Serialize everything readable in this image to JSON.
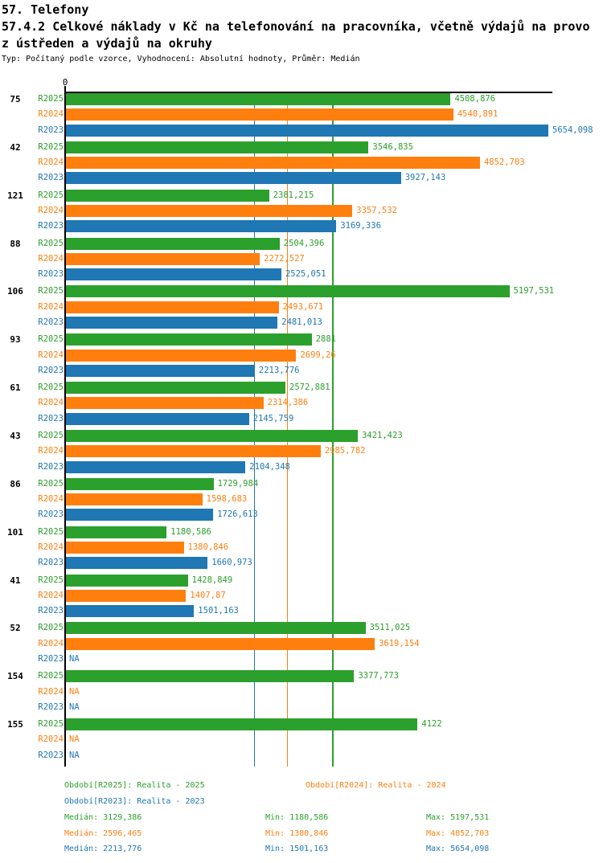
{
  "header": {
    "title": "57. Telefony",
    "subtitle_line1": "57.4.2 Celkové náklady v Kč na telefonování na pracovníka, včetně výdajů na provo",
    "subtitle_line2": "z ústředen a výdajů na okruhy",
    "meta_line": "Typ: Počítaný podle vzorce, Vyhodnocení: Absolutní hodnoty, Průměr: Medián"
  },
  "chart_data": {
    "type": "bar",
    "orientation": "horizontal",
    "grid": "median-lines",
    "na_label": "NA",
    "axis": {
      "zero_label": "0",
      "x_min": 0,
      "x_max_implied": 5716
    },
    "series": [
      {
        "key": "R2025",
        "legend": "Období[R2025]: Realita - 2025",
        "color": "#2ca02c",
        "median": 3129.386,
        "median_label": "Medián: 3129,386",
        "min_label": "Min: 1180,586",
        "max_label": "Max: 5197,531"
      },
      {
        "key": "R2024",
        "legend": "Období[R2024]: Realita - 2024",
        "color": "#ff7f0e",
        "median": 2596.465,
        "median_label": "Medián: 2596,465",
        "min_label": "Min: 1380,846",
        "max_label": "Max: 4852,703"
      },
      {
        "key": "R2023",
        "legend": "Období[R2023]: Realita - 2023",
        "color": "#1f77b4",
        "median": 2213.776,
        "median_label": "Medián: 2213,776",
        "min_label": "Min: 1501,163",
        "max_label": "Max: 5654,098"
      }
    ],
    "groups": [
      {
        "id": "75",
        "values": [
          "4508,876",
          "4540,891",
          "5654,098"
        ]
      },
      {
        "id": "42",
        "values": [
          "3546,835",
          "4852,703",
          "3927,143"
        ]
      },
      {
        "id": "121",
        "values": [
          "2381,215",
          "3357,532",
          "3169,336"
        ]
      },
      {
        "id": "88",
        "values": [
          "2504,396",
          "2272,527",
          "2525,051"
        ]
      },
      {
        "id": "106",
        "values": [
          "5197,531",
          "2493,671",
          "2481,013"
        ]
      },
      {
        "id": "93",
        "values": [
          "2881",
          "2699,26",
          "2213,776"
        ]
      },
      {
        "id": "61",
        "values": [
          "2572,881",
          "2314,386",
          "2145,759"
        ]
      },
      {
        "id": "43",
        "values": [
          "3421,423",
          "2985,782",
          "2104,348"
        ]
      },
      {
        "id": "86",
        "values": [
          "1729,984",
          "1598,683",
          "1726,613"
        ]
      },
      {
        "id": "101",
        "values": [
          "1180,586",
          "1380,846",
          "1660,973"
        ]
      },
      {
        "id": "41",
        "values": [
          "1428,849",
          "1407,87",
          "1501,163"
        ]
      },
      {
        "id": "52",
        "values": [
          "3511,025",
          "3619,154",
          "NA"
        ]
      },
      {
        "id": "154",
        "values": [
          "3377,773",
          "NA",
          "NA"
        ]
      },
      {
        "id": "155",
        "values": [
          "4122",
          "NA",
          "NA"
        ]
      }
    ]
  }
}
